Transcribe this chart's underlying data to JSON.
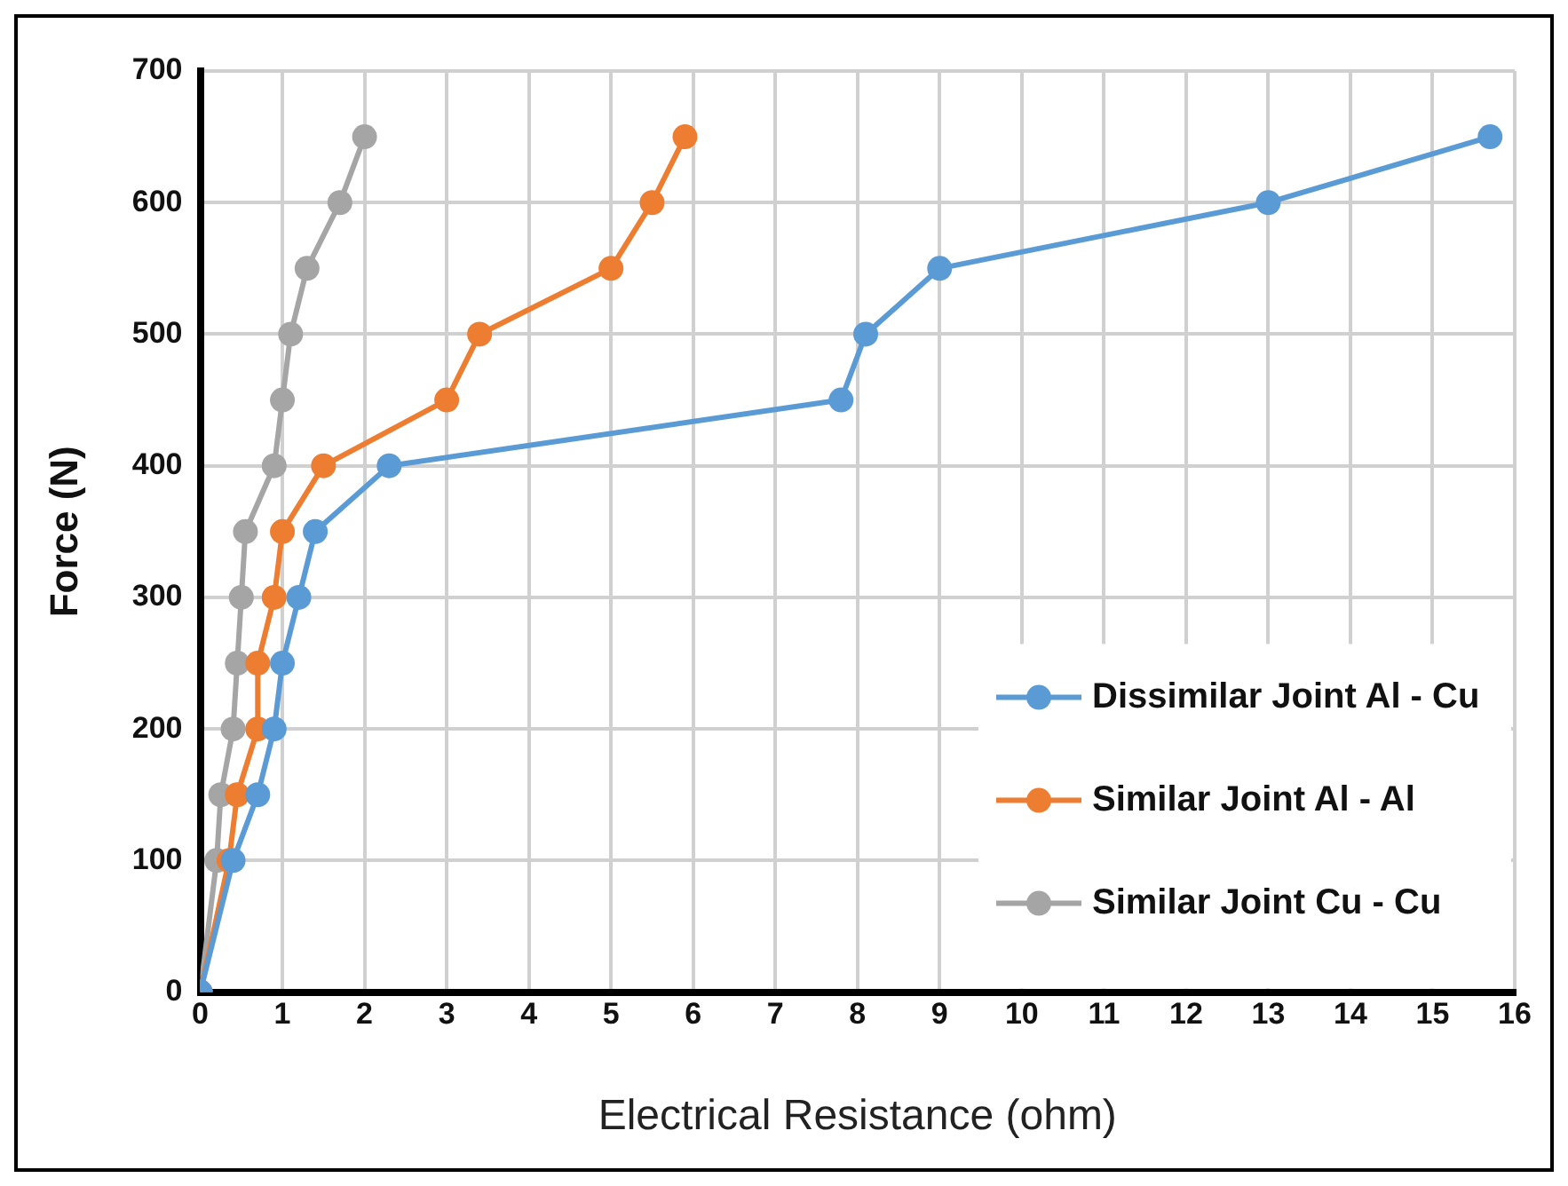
{
  "chart_data": {
    "type": "line",
    "xlabel": "Electrical Resistance (ohm)",
    "ylabel": "Force (N)",
    "xlim": [
      0,
      16
    ],
    "xticks": [
      0,
      1,
      2,
      3,
      4,
      5,
      6,
      7,
      8,
      9,
      10,
      11,
      12,
      13,
      14,
      15,
      16
    ],
    "ylim": [
      0,
      700
    ],
    "yticks": [
      0,
      100,
      200,
      300,
      400,
      500,
      600,
      700
    ],
    "grid": true,
    "legend": "bottom right",
    "marker": "circle",
    "line_style": "solid",
    "series": [
      {
        "name": "Dissimilar Joint Al - Cu",
        "color": "#5b9bd5",
        "x": [
          0,
          0.4,
          0.7,
          0.9,
          1.0,
          1.2,
          1.4,
          2.3,
          7.8,
          8.1,
          9.0,
          13.0,
          15.7
        ],
        "values": [
          0,
          100,
          150,
          200,
          250,
          300,
          350,
          400,
          450,
          500,
          550,
          600,
          650
        ]
      },
      {
        "name": "Similar Joint Al - Al",
        "color": "#ed7d31",
        "x": [
          0,
          0.35,
          0.45,
          0.7,
          0.7,
          0.9,
          1.0,
          1.5,
          3.0,
          3.4,
          5.0,
          5.5,
          5.9
        ],
        "values": [
          0,
          100,
          150,
          200,
          250,
          300,
          350,
          400,
          450,
          500,
          550,
          600,
          650
        ]
      },
      {
        "name": "Similar Joint Cu - Cu",
        "color": "#a5a5a5",
        "x": [
          0,
          0.2,
          0.25,
          0.4,
          0.45,
          0.5,
          0.55,
          0.9,
          1.0,
          1.1,
          1.3,
          1.7,
          2.0
        ],
        "values": [
          0,
          100,
          150,
          200,
          250,
          300,
          350,
          400,
          450,
          500,
          550,
          600,
          650
        ]
      }
    ]
  }
}
